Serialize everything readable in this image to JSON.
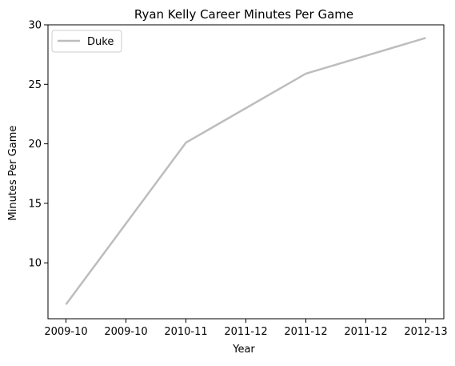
{
  "chart_data": {
    "type": "line",
    "title": "Ryan Kelly  Career Minutes Per Game",
    "xlabel": "Year",
    "ylabel": "Minutes Per Game",
    "x_tick_labels": [
      "2009-10",
      "2009-10",
      "2010-11",
      "2011-12",
      "2011-12",
      "2011-12",
      "2012-13"
    ],
    "ylim": [
      5.3,
      30
    ],
    "y_ticks": [
      10,
      15,
      20,
      25,
      30
    ],
    "grid": false,
    "legend_position": "top-left",
    "series": [
      {
        "name": "Duke",
        "color": "#bdbdbd",
        "x": [
          "2009-10",
          "2010-11",
          "2011-12",
          "2012-13"
        ],
        "values": [
          6.5,
          20.1,
          25.9,
          28.9
        ]
      }
    ]
  }
}
